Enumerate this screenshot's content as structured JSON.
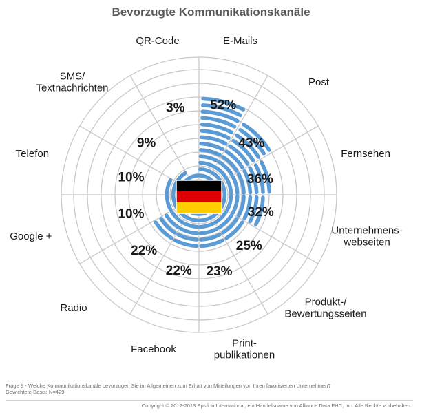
{
  "chart_data": {
    "type": "radial-bar",
    "title": "Bevorzugte Kommunikationskanäle",
    "flag": "germany-flag",
    "categories": [
      {
        "label": [
          "E-Mails"
        ],
        "value": 52,
        "value_label": "52%"
      },
      {
        "label": [
          "Post"
        ],
        "value": 43,
        "value_label": "43%"
      },
      {
        "label": [
          "Fernsehen"
        ],
        "value": 36,
        "value_label": "36%"
      },
      {
        "label": [
          "Unternehmens-",
          "webseiten"
        ],
        "value": 32,
        "value_label": "32%"
      },
      {
        "label": [
          "Produkt-/",
          "Bewertungsseiten"
        ],
        "value": 25,
        "value_label": "25%"
      },
      {
        "label": [
          "Print-",
          "publikationen"
        ],
        "value": 23,
        "value_label": "23%"
      },
      {
        "label": [
          "Facebook"
        ],
        "value": 22,
        "value_label": "22%"
      },
      {
        "label": [
          "Radio"
        ],
        "value": 22,
        "value_label": "22%"
      },
      {
        "label": [
          "Google +"
        ],
        "value": 10,
        "value_label": "10%"
      },
      {
        "label": [
          "Telefon"
        ],
        "value": 10,
        "value_label": "10%"
      },
      {
        "label": [
          "SMS/",
          "Textnachrichten"
        ],
        "value": 9,
        "value_label": "9%"
      },
      {
        "label": [
          "QR-Code"
        ],
        "value": 3,
        "value_label": "3%"
      }
    ],
    "grid": true,
    "colors": {
      "bar": "#5b9bd5",
      "grid": "#c8c8c8",
      "title": "#58595b",
      "flag_black": "#000000",
      "flag_red": "#dd0000",
      "flag_gold": "#ffce00"
    }
  },
  "footnote": {
    "line1": "Frage 9 - Welche Kommunikationskanäle bevorzugen Sie im Allgemeinen zum Erhalt von Mitteilungen von Ihren favorisierten Unternehmen?",
    "line2": "Gewichtete Basis: N=429"
  },
  "copyright": "Copyright © 2012-2013 Epsilon International, ein Handelsname von Alliance Data FHC, Inc. Alle Rechte vorbehalten."
}
